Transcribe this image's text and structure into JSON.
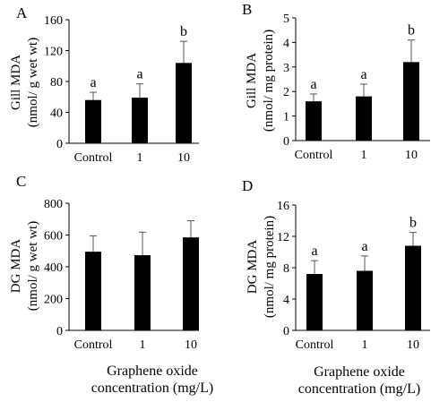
{
  "chart_data": [
    {
      "panel_letter": "A",
      "type": "bar",
      "categories": [
        "Control",
        "1",
        "10"
      ],
      "values": [
        56,
        59,
        104
      ],
      "error_plus": [
        10,
        18,
        28
      ],
      "significance": [
        "a",
        "a",
        "b"
      ],
      "ylabel_line1": "Gill MDA",
      "ylabel_line2": "(nmol/ g wet wt)",
      "xlabel": "",
      "ylim": [
        0,
        160
      ],
      "yticks": [
        0,
        40,
        80,
        120,
        160
      ],
      "ytick_labels": [
        "0",
        "40",
        "80",
        "120",
        "160"
      ],
      "bar_color": "#000000",
      "grid": false
    },
    {
      "panel_letter": "B",
      "type": "bar",
      "categories": [
        "Control",
        "1",
        "10"
      ],
      "values": [
        1.6,
        1.8,
        3.2
      ],
      "error_plus": [
        0.3,
        0.5,
        0.9
      ],
      "significance": [
        "a",
        "a",
        "b"
      ],
      "ylabel_line1": "Gill MDA",
      "ylabel_line2": "(nmol/ mg protein)",
      "xlabel": "",
      "ylim": [
        0,
        5
      ],
      "yticks": [
        0,
        1,
        2,
        3,
        4,
        5
      ],
      "ytick_labels": [
        "0",
        "1",
        "2",
        "3",
        "4",
        "5"
      ],
      "bar_color": "#000000",
      "grid": false
    },
    {
      "panel_letter": "C",
      "type": "bar",
      "categories": [
        "Control",
        "1",
        "10"
      ],
      "values": [
        495,
        473,
        585
      ],
      "error_plus": [
        100,
        145,
        105
      ],
      "significance": [
        "",
        "",
        ""
      ],
      "ylabel_line1": "DG MDA",
      "ylabel_line2": "(nmol/ g wet wt)",
      "xlabel_line1": "Graphene oxide",
      "xlabel_line2": "concentration  (mg/L)",
      "ylim": [
        0,
        800
      ],
      "yticks": [
        0,
        200,
        400,
        600,
        800
      ],
      "ytick_labels": [
        "0",
        "200",
        "400",
        "600",
        "800"
      ],
      "bar_color": "#000000",
      "grid": false
    },
    {
      "panel_letter": "D",
      "type": "bar",
      "categories": [
        "Control",
        "1",
        "10"
      ],
      "values": [
        7.2,
        7.6,
        10.8
      ],
      "error_plus": [
        1.7,
        1.9,
        1.7
      ],
      "significance": [
        "a",
        "a",
        "b"
      ],
      "ylabel_line1": "DG MDA",
      "ylabel_line2": "(nmol/ mg protein)",
      "xlabel_line1": "Graphene oxide",
      "xlabel_line2": "concentration  (mg/L)",
      "ylim": [
        0,
        16
      ],
      "yticks": [
        0,
        4,
        8,
        12,
        16
      ],
      "ytick_labels": [
        "0",
        "4",
        "8",
        "12",
        "16"
      ],
      "bar_color": "#000000",
      "grid": false
    }
  ]
}
